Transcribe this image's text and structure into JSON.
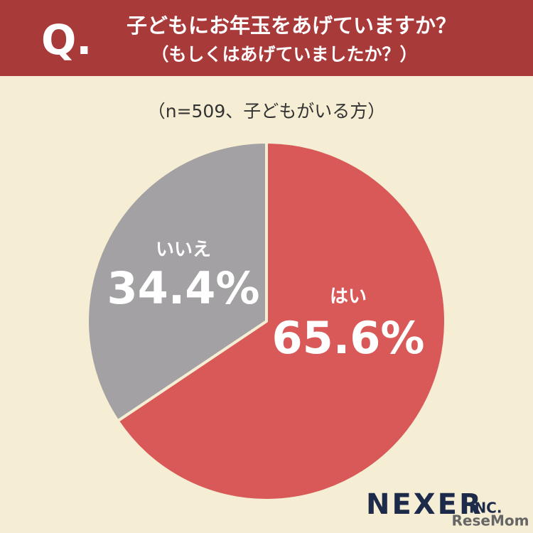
{
  "chart_data": {
    "type": "pie",
    "title_prefix": "Q.",
    "title": "子どもにお年玉をあげていますか？",
    "title_line2": "（もしくはあげていましたか？）",
    "subtitle": "（n=509、子どもがいる方）",
    "categories": [
      "はい",
      "いいえ"
    ],
    "values": [
      65.6,
      34.4
    ],
    "value_labels": [
      "65.6%",
      "34.4%"
    ],
    "colors": [
      "#d95858",
      "#a3a1a3"
    ],
    "start_angle": -90,
    "direction": "clockwise"
  },
  "logo": {
    "name": "NEXER",
    "suffix": "INC."
  },
  "watermark": "ReseMom"
}
